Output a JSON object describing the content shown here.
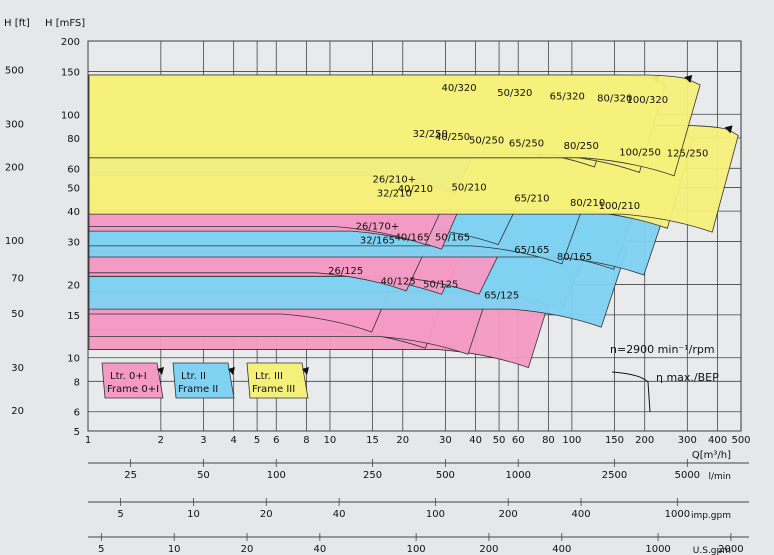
{
  "chart_data": {
    "type": "area",
    "title": "",
    "y_axis_headers": {
      "ft": "H  [ft]",
      "m": "H  [mFS]"
    },
    "y_m_ticks": [
      5,
      6,
      8,
      10,
      15,
      20,
      30,
      40,
      50,
      60,
      80,
      100,
      150,
      200
    ],
    "y_ft_ticks": [
      20,
      30,
      50,
      70,
      100,
      200,
      300,
      500
    ],
    "x_ticks": [
      1,
      2,
      3,
      4,
      5,
      6,
      8,
      10,
      15,
      20,
      30,
      40,
      50,
      60,
      80,
      100,
      150,
      200,
      300,
      400
    ],
    "x_label": "Q[m³/h]",
    "x_last_tick": "500",
    "aux_scales": [
      {
        "unit": "l/min",
        "ticks": [
          25,
          50,
          100,
          250,
          500,
          1000,
          2500,
          5000
        ]
      },
      {
        "unit": "imp.gpm",
        "ticks": [
          5,
          10,
          20,
          40,
          100,
          200,
          400,
          1000
        ]
      },
      {
        "unit": "U.S.gpm",
        "ticks": [
          5,
          10,
          20,
          40,
          100,
          200,
          400,
          1000,
          2000
        ]
      }
    ],
    "speed_label": "n=2900  min⁻¹/rpm",
    "efficiency_label": "η max./BEP",
    "frames": [
      {
        "label_top": "Ltr.  0+I",
        "label_bottom": "Frame  0+I",
        "color": "#f49ac4"
      },
      {
        "label_top": "Ltr.  II",
        "label_bottom": "Frame  II",
        "color": "#7fd2f2"
      },
      {
        "label_top": "Ltr.  III",
        "label_bottom": "Frame  III",
        "color": "#f5f07a"
      }
    ],
    "pumps": [
      {
        "label": "26/125",
        "frame": "0+I",
        "q_max": 18,
        "h_max_m": 21,
        "q_bep": 17,
        "h_bep_m": 25
      },
      {
        "label": "40/125",
        "frame": "0+I",
        "q_max": 30,
        "h_max_m": 18,
        "q_bep": 28,
        "h_bep_m": 24
      },
      {
        "label": "50/125",
        "frame": "0+I",
        "q_max": 45,
        "h_max_m": 17,
        "q_bep": 42,
        "h_bep_m": 24
      },
      {
        "label": "65/125",
        "frame": "0+I",
        "q_max": 80,
        "h_max_m": 15,
        "q_bep": 75,
        "h_bep_m": 22
      },
      {
        "label": "26/170+ 32/165",
        "frame": "0+I",
        "q_max": 25,
        "h_max_m": 31,
        "q_bep": 23,
        "h_bep_m": 35
      },
      {
        "label": "40/165",
        "frame": "0+I",
        "q_max": 35,
        "h_max_m": 30,
        "q_bep": 32,
        "h_bep_m": 33
      },
      {
        "label": "50/165",
        "frame": "0+I",
        "q_max": 50,
        "h_max_m": 30,
        "q_bep": 47,
        "h_bep_m": 33
      },
      {
        "label": "65/165",
        "frame": "II",
        "q_max": 110,
        "h_max_m": 26,
        "q_bep": 100,
        "h_bep_m": 30
      },
      {
        "label": "80/165",
        "frame": "II",
        "q_max": 160,
        "h_max_m": 22,
        "q_bep": 150,
        "h_bep_m": 31
      },
      {
        "label": "26/210+ 32/210",
        "frame": "0+I",
        "q_max": 30,
        "h_max_m": 48,
        "q_bep": 27,
        "h_bep_m": 55
      },
      {
        "label": "40/210",
        "frame": "0+I",
        "q_max": 35,
        "h_max_m": 46,
        "q_bep": 33,
        "h_bep_m": 54
      },
      {
        "label": "50/210",
        "frame": "II",
        "q_max": 60,
        "h_max_m": 48,
        "q_bep": 55,
        "h_bep_m": 53
      },
      {
        "label": "65/210",
        "frame": "II",
        "q_max": 110,
        "h_max_m": 40,
        "q_bep": 100,
        "h_bep_m": 52
      },
      {
        "label": "80/210",
        "frame": "II",
        "q_max": 180,
        "h_max_m": 38,
        "q_bep": 170,
        "h_bep_m": 50
      },
      {
        "label": "100/210",
        "frame": "II",
        "q_max": 240,
        "h_max_m": 36,
        "q_bep": 230,
        "h_bep_m": 50
      },
      {
        "label": "32/250",
        "frame": "II",
        "q_max": 40,
        "h_max_m": 78,
        "q_bep": 38,
        "h_bep_m": 90
      },
      {
        "label": "40/250",
        "frame": "II",
        "q_max": 50,
        "h_max_m": 75,
        "q_bep": 47,
        "h_bep_m": 88
      },
      {
        "label": "50/250",
        "frame": "II",
        "q_max": 70,
        "h_max_m": 72,
        "q_bep": 65,
        "h_bep_m": 86
      },
      {
        "label": "65/250",
        "frame": "II",
        "q_max": 100,
        "h_max_m": 70,
        "q_bep": 95,
        "h_bep_m": 84
      },
      {
        "label": "80/250",
        "frame": "II",
        "q_max": 170,
        "h_max_m": 68,
        "q_bep": 160,
        "h_bep_m": 82
      },
      {
        "label": "100/250",
        "frame": "III",
        "q_max": 300,
        "h_max_m": 56,
        "q_bep": 280,
        "h_bep_m": 88
      },
      {
        "label": "125/250",
        "frame": "III",
        "q_max": 460,
        "h_max_m": 54,
        "q_bep": 440,
        "h_bep_m": 90
      },
      {
        "label": "40/320",
        "frame": "II",
        "q_max": 55,
        "h_max_m": 120,
        "q_bep": 50,
        "h_bep_m": 140
      },
      {
        "label": "50/320",
        "frame": "II",
        "q_max": 90,
        "h_max_m": 110,
        "q_bep": 85,
        "h_bep_m": 138
      },
      {
        "label": "65/320",
        "frame": "III",
        "q_max": 150,
        "h_max_m": 100,
        "q_bep": 140,
        "h_bep_m": 142
      },
      {
        "label": "80/320",
        "frame": "III",
        "q_max": 230,
        "h_max_m": 95,
        "q_bep": 220,
        "h_bep_m": 145
      },
      {
        "label": "100/320",
        "frame": "III",
        "q_max": 320,
        "h_max_m": 92,
        "q_bep": 300,
        "h_bep_m": 145
      }
    ]
  }
}
